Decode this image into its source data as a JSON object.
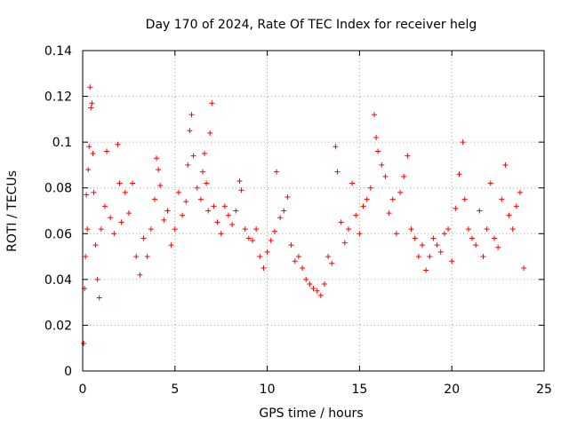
{
  "chart_data": {
    "type": "scatter",
    "title": "Day 170 of 2024, Rate Of TEC Index for receiver helg",
    "xlabel": "GPS time / hours",
    "ylabel": "ROTI / TECUs",
    "xlim": [
      0,
      25
    ],
    "ylim": [
      0,
      0.14
    ],
    "xticks": [
      "0",
      "5",
      "10",
      "15",
      "20",
      "25"
    ],
    "yticks": [
      "0",
      "0.02",
      "0.04",
      "0.06",
      "0.08",
      "0.1",
      "0.12",
      "0.14"
    ],
    "grid": true,
    "marker": "+",
    "series_color": "#ff0000",
    "series": [
      {
        "points": [
          [
            0.05,
            0.012
          ],
          [
            0.1,
            0.036
          ],
          [
            0.15,
            0.05
          ],
          [
            0.2,
            0.077
          ],
          [
            0.25,
            0.062
          ],
          [
            0.3,
            0.088
          ],
          [
            0.35,
            0.098
          ],
          [
            0.4,
            0.124
          ],
          [
            0.45,
            0.115
          ],
          [
            0.5,
            0.117
          ],
          [
            0.55,
            0.095
          ],
          [
            0.6,
            0.078
          ],
          [
            0.7,
            0.055
          ],
          [
            0.8,
            0.04
          ],
          [
            0.9,
            0.032
          ],
          [
            1.0,
            0.062
          ],
          [
            1.2,
            0.072
          ],
          [
            1.3,
            0.096
          ],
          [
            1.5,
            0.067
          ],
          [
            1.7,
            0.06
          ],
          [
            1.9,
            0.099
          ],
          [
            2.0,
            0.082
          ],
          [
            2.1,
            0.065
          ],
          [
            2.3,
            0.078
          ],
          [
            2.5,
            0.069
          ],
          [
            2.7,
            0.082
          ],
          [
            2.9,
            0.05
          ],
          [
            3.1,
            0.042
          ],
          [
            3.3,
            0.058
          ],
          [
            3.5,
            0.05
          ],
          [
            3.7,
            0.062
          ],
          [
            3.9,
            0.075
          ],
          [
            4.0,
            0.093
          ],
          [
            4.1,
            0.088
          ],
          [
            4.2,
            0.081
          ],
          [
            4.4,
            0.066
          ],
          [
            4.6,
            0.07
          ],
          [
            4.8,
            0.055
          ],
          [
            5.0,
            0.062
          ],
          [
            5.2,
            0.078
          ],
          [
            5.4,
            0.068
          ],
          [
            5.6,
            0.074
          ],
          [
            5.7,
            0.09
          ],
          [
            5.8,
            0.105
          ],
          [
            5.9,
            0.112
          ],
          [
            6.0,
            0.094
          ],
          [
            6.2,
            0.08
          ],
          [
            6.4,
            0.075
          ],
          [
            6.5,
            0.087
          ],
          [
            6.6,
            0.095
          ],
          [
            6.7,
            0.082
          ],
          [
            6.8,
            0.07
          ],
          [
            6.9,
            0.104
          ],
          [
            7.0,
            0.117
          ],
          [
            7.1,
            0.072
          ],
          [
            7.3,
            0.065
          ],
          [
            7.5,
            0.06
          ],
          [
            7.7,
            0.072
          ],
          [
            7.9,
            0.068
          ],
          [
            8.1,
            0.064
          ],
          [
            8.3,
            0.07
          ],
          [
            8.5,
            0.083
          ],
          [
            8.6,
            0.079
          ],
          [
            8.8,
            0.062
          ],
          [
            9.0,
            0.058
          ],
          [
            9.2,
            0.057
          ],
          [
            9.4,
            0.062
          ],
          [
            9.6,
            0.05
          ],
          [
            9.8,
            0.045
          ],
          [
            10.0,
            0.052
          ],
          [
            10.2,
            0.057
          ],
          [
            10.4,
            0.061
          ],
          [
            10.5,
            0.087
          ],
          [
            10.7,
            0.067
          ],
          [
            10.9,
            0.07
          ],
          [
            11.1,
            0.076
          ],
          [
            11.3,
            0.055
          ],
          [
            11.5,
            0.048
          ],
          [
            11.7,
            0.05
          ],
          [
            11.9,
            0.045
          ],
          [
            12.1,
            0.04
          ],
          [
            12.3,
            0.038
          ],
          [
            12.5,
            0.036
          ],
          [
            12.7,
            0.035
          ],
          [
            12.9,
            0.033
          ],
          [
            13.1,
            0.038
          ],
          [
            13.3,
            0.05
          ],
          [
            13.5,
            0.047
          ],
          [
            13.7,
            0.098
          ],
          [
            13.8,
            0.087
          ],
          [
            14.0,
            0.065
          ],
          [
            14.2,
            0.056
          ],
          [
            14.4,
            0.062
          ],
          [
            14.6,
            0.082
          ],
          [
            14.8,
            0.068
          ],
          [
            15.0,
            0.06
          ],
          [
            15.2,
            0.072
          ],
          [
            15.4,
            0.075
          ],
          [
            15.6,
            0.08
          ],
          [
            15.8,
            0.112
          ],
          [
            15.9,
            0.102
          ],
          [
            16.0,
            0.096
          ],
          [
            16.2,
            0.09
          ],
          [
            16.4,
            0.085
          ],
          [
            16.6,
            0.069
          ],
          [
            16.8,
            0.075
          ],
          [
            17.0,
            0.06
          ],
          [
            17.2,
            0.078
          ],
          [
            17.4,
            0.085
          ],
          [
            17.6,
            0.094
          ],
          [
            17.8,
            0.062
          ],
          [
            18.0,
            0.058
          ],
          [
            18.2,
            0.05
          ],
          [
            18.4,
            0.055
          ],
          [
            18.6,
            0.044
          ],
          [
            18.8,
            0.05
          ],
          [
            19.0,
            0.058
          ],
          [
            19.2,
            0.055
          ],
          [
            19.4,
            0.052
          ],
          [
            19.6,
            0.06
          ],
          [
            19.8,
            0.062
          ],
          [
            20.0,
            0.048
          ],
          [
            20.2,
            0.071
          ],
          [
            20.4,
            0.086
          ],
          [
            20.6,
            0.1
          ],
          [
            20.7,
            0.075
          ],
          [
            20.9,
            0.062
          ],
          [
            21.1,
            0.058
          ],
          [
            21.3,
            0.055
          ],
          [
            21.5,
            0.07
          ],
          [
            21.7,
            0.05
          ],
          [
            21.9,
            0.062
          ],
          [
            22.1,
            0.082
          ],
          [
            22.3,
            0.058
          ],
          [
            22.5,
            0.054
          ],
          [
            22.7,
            0.075
          ],
          [
            22.9,
            0.09
          ],
          [
            23.1,
            0.068
          ],
          [
            23.3,
            0.062
          ],
          [
            23.5,
            0.072
          ],
          [
            23.7,
            0.078
          ],
          [
            23.9,
            0.045
          ]
        ]
      }
    ]
  }
}
